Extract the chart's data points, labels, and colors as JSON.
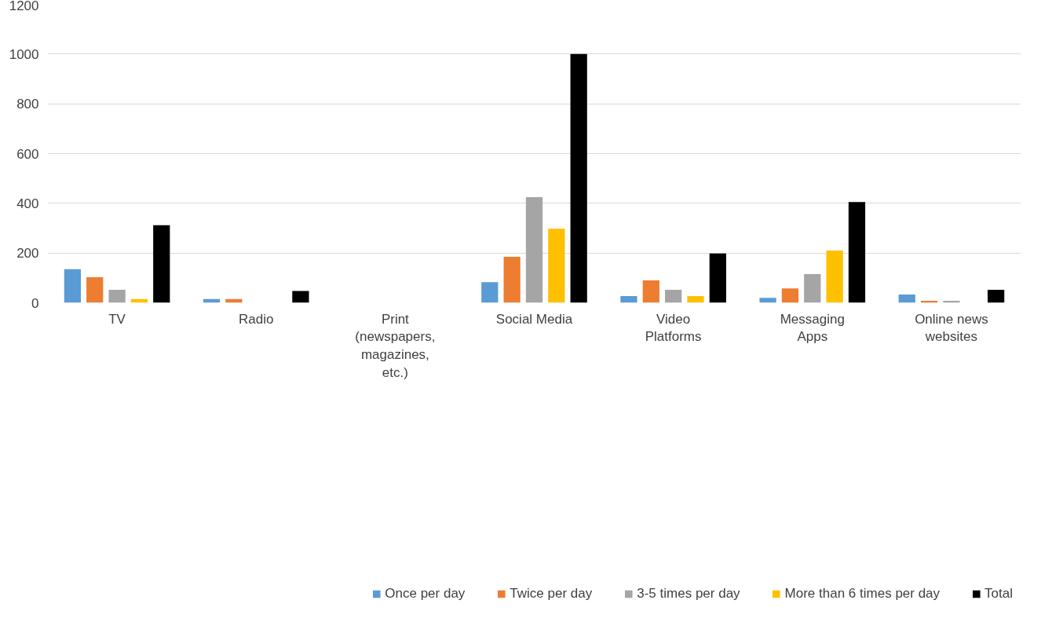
{
  "chart_data": {
    "type": "bar",
    "categories": [
      "TV",
      "Radio",
      "Print (newspapers, magazines, etc.)",
      "Social Media",
      "Video Platforms",
      "Messaging Apps",
      "Online news websites"
    ],
    "series": [
      {
        "name": "Once per day",
        "color": "#5b9bd5",
        "values": [
          135,
          15,
          0,
          83,
          27,
          20,
          33
        ]
      },
      {
        "name": "Twice per day",
        "color": "#ed7d31",
        "values": [
          103,
          15,
          0,
          185,
          90,
          58,
          8
        ]
      },
      {
        "name": "3-5 times per day",
        "color": "#a5a5a5",
        "values": [
          52,
          0,
          0,
          425,
          52,
          115,
          8
        ]
      },
      {
        "name": "More than 6 times per day",
        "color": "#ffc000",
        "values": [
          15,
          0,
          0,
          298,
          27,
          210,
          0
        ]
      },
      {
        "name": "Total",
        "color": "#000000",
        "values": [
          312,
          47,
          0,
          1000,
          198,
          405,
          52
        ]
      }
    ],
    "ylim": [
      0,
      1200
    ],
    "yticks": [
      0,
      200,
      400,
      600,
      800,
      1000,
      1200
    ],
    "grid": "y",
    "legend": "bottom"
  }
}
